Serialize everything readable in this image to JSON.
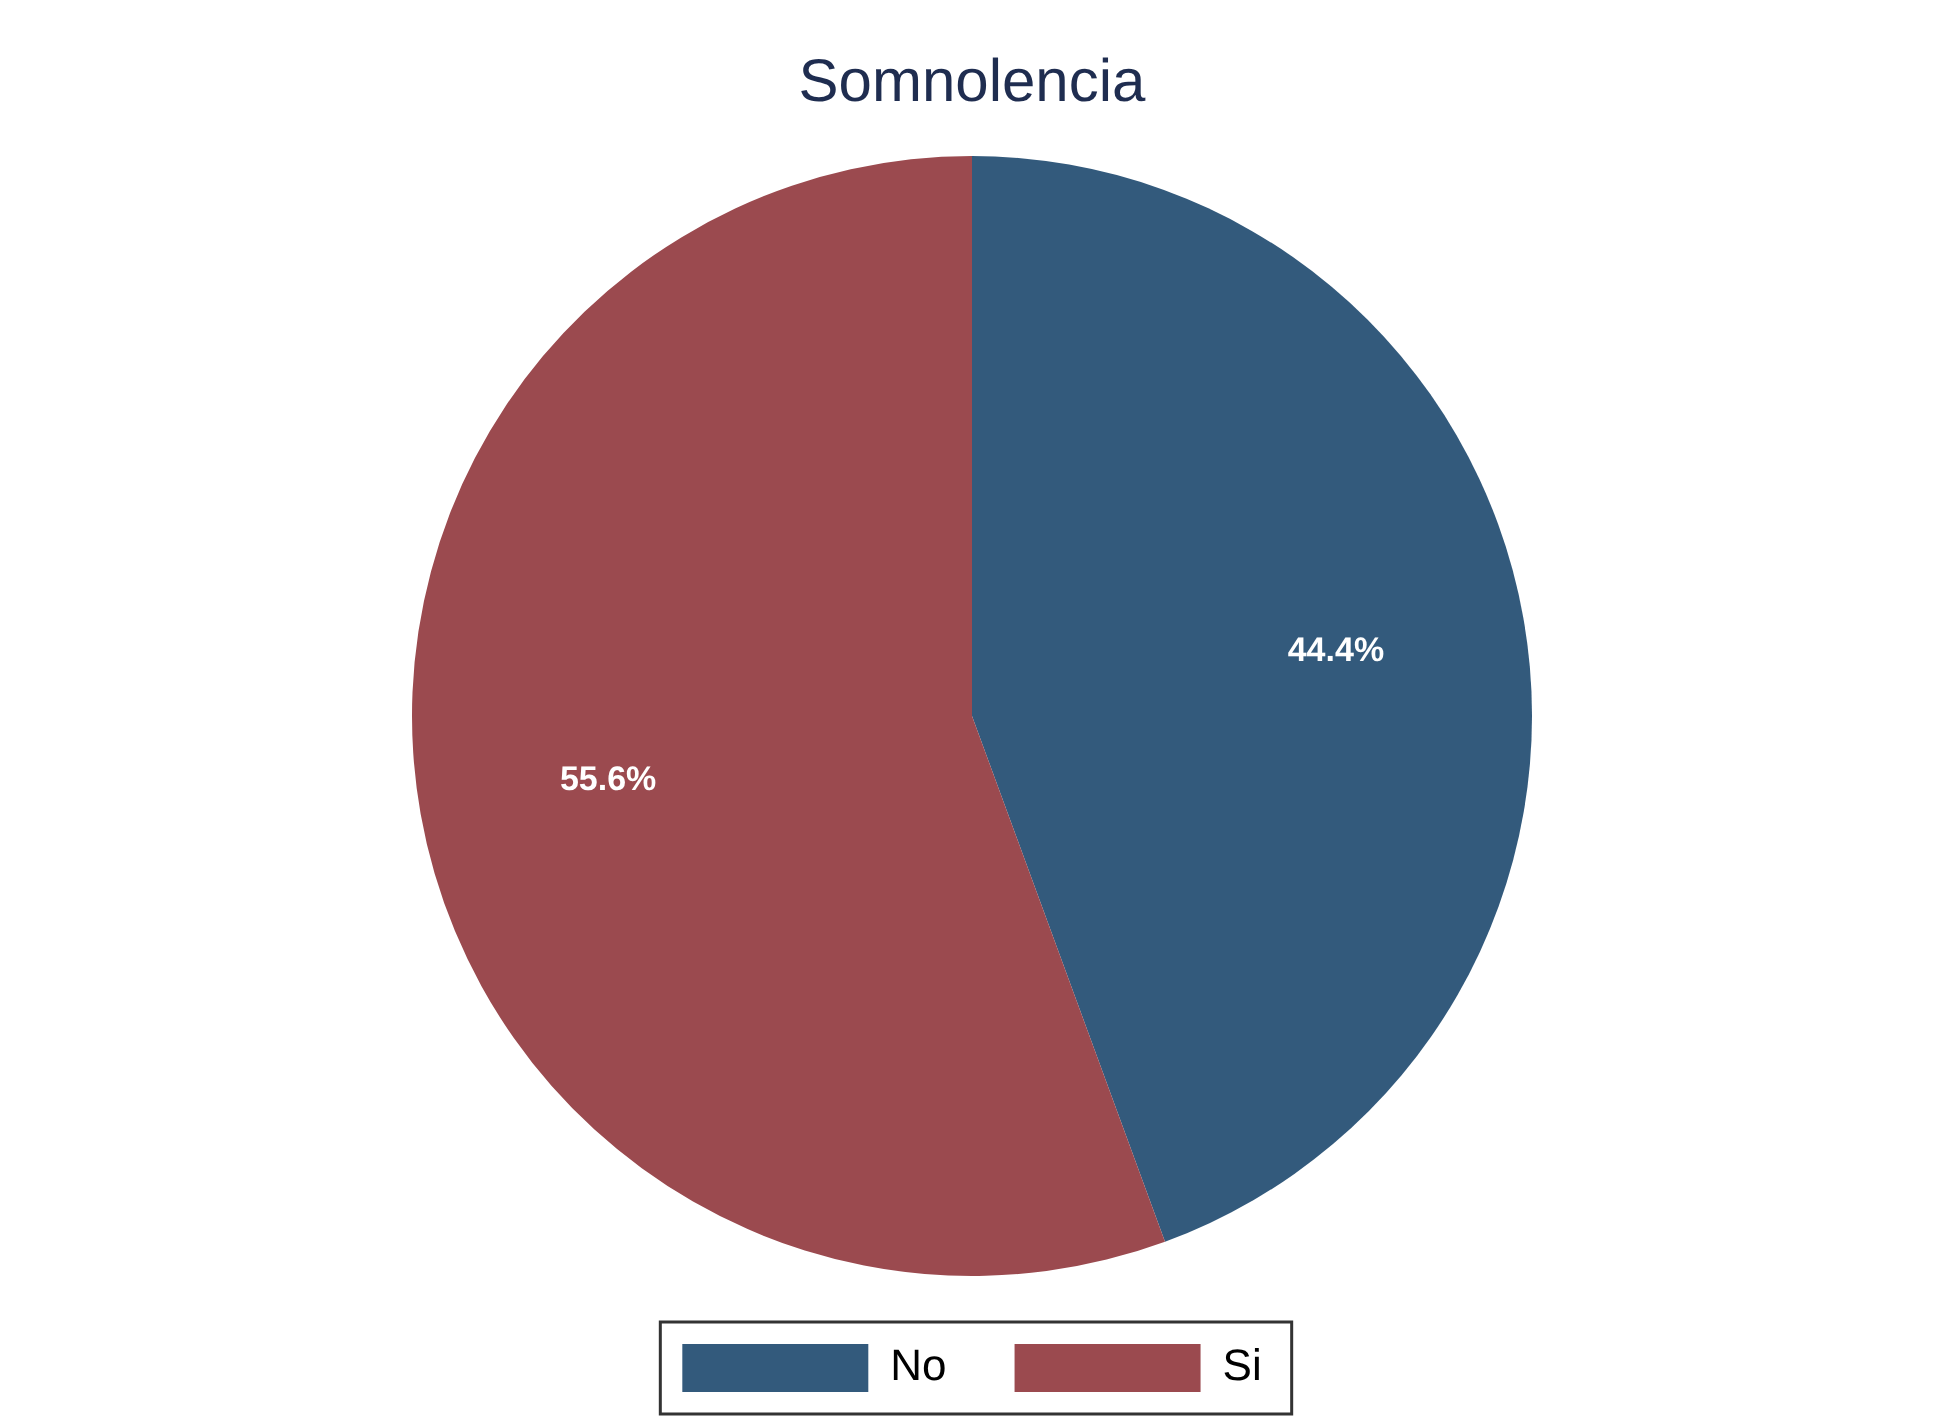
{
  "chart_data": {
    "type": "pie",
    "title": "Somnolencia",
    "categories": [
      "No",
      "Si"
    ],
    "values": [
      44.4,
      55.6
    ],
    "colors": [
      "#335a7c",
      "#9b4a4f"
    ],
    "value_labels": [
      "44.4%",
      "55.6%"
    ],
    "legend": "bottom"
  }
}
